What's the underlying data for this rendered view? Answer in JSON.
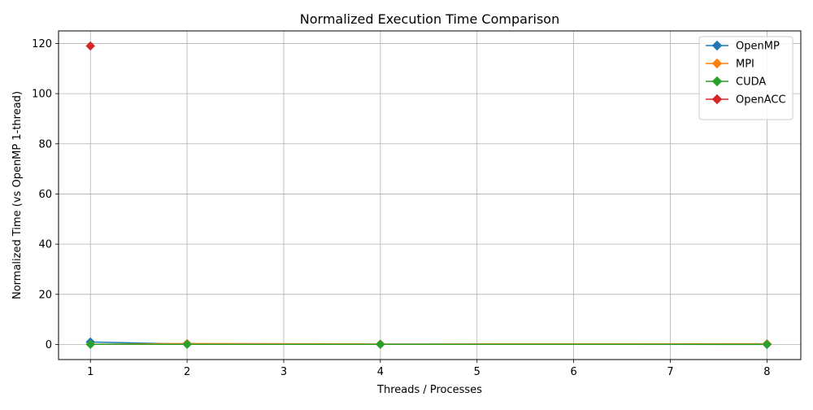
{
  "chart_data": {
    "type": "line",
    "title": "Normalized Execution Time Comparison",
    "xlabel": "Threads / Processes",
    "ylabel": "Normalized Time (vs OpenMP 1-thread)",
    "xlim": [
      0.67,
      8.35
    ],
    "ylim": [
      -6,
      125
    ],
    "xticks": [
      1,
      2,
      3,
      4,
      5,
      6,
      7,
      8
    ],
    "yticks": [
      0,
      20,
      40,
      60,
      80,
      100,
      120
    ],
    "grid": true,
    "legend_position": "top-right",
    "marker": "diamond",
    "series": [
      {
        "name": "OpenMP",
        "color": "#1f77b4",
        "x": [
          1,
          2,
          4,
          8
        ],
        "y": [
          1.0,
          0.15,
          0.1,
          0.05
        ]
      },
      {
        "name": "MPI",
        "color": "#ff7f0e",
        "x": [
          1,
          2,
          4,
          8
        ],
        "y": [
          0.1,
          0.4,
          0.2,
          0.3
        ]
      },
      {
        "name": "CUDA",
        "color": "#2ca02c",
        "x": [
          1,
          2,
          4,
          8
        ],
        "y": [
          0.1,
          0.1,
          0.1,
          0.1
        ]
      },
      {
        "name": "OpenACC",
        "color": "#d62728",
        "x": [
          1
        ],
        "y": [
          119
        ]
      }
    ]
  }
}
